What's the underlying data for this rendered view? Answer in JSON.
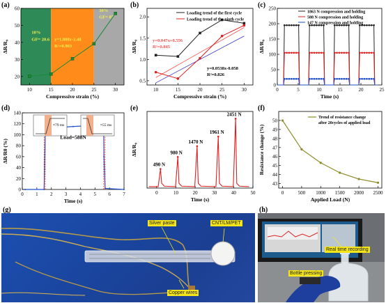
{
  "panels": {
    "a": {
      "label": "(a)",
      "chart_data": {
        "type": "line",
        "x": [
          10,
          15,
          20,
          25,
          30
        ],
        "series": [
          {
            "values": [
              20.1,
              21.4,
              30.4,
              39.2,
              57.0
            ]
          }
        ],
        "xlabel": "Compressive strain (%)",
        "ylabel": "ΔR/R₀",
        "xlim": [
          8,
          32
        ],
        "ylim": [
          15,
          60
        ],
        "xticks": [
          10,
          15,
          20,
          25,
          30
        ],
        "yticks": [
          20,
          30,
          40,
          50,
          60
        ],
        "regions": [
          {
            "x_from": 8,
            "x_to": 15,
            "color": "#2e8b57",
            "label_a": "10%",
            "label_b": "GF= 20.6"
          },
          {
            "x_from": 15,
            "x_to": 25,
            "color": "#ff8c1a",
            "label_a": "y=1.808x-2.48",
            "label_b": "R²=0.903"
          },
          {
            "x_from": 25,
            "x_to": 32,
            "color": "#a8a8a8",
            "label_a": "30%",
            "label_b": "GF= 87"
          }
        ]
      }
    },
    "b": {
      "label": "(b)",
      "chart_data": {
        "type": "line",
        "x": [
          10,
          15,
          20,
          25,
          30
        ],
        "series": [
          {
            "name": "Loading trend of the first cycle",
            "color": "#222222",
            "values": [
              1.1,
              1.07,
              1.62,
              1.93,
              1.85
            ]
          },
          {
            "name": "Loading trend of the ninth cycle",
            "color": "#e02020",
            "values": [
              0.7,
              0.55,
              1.03,
              1.55,
              1.8
            ]
          }
        ],
        "fits": [
          {
            "color": "#ff5050",
            "text_a": "y=0.047x+0.556",
            "text_b": "R²=0.845"
          },
          {
            "color": "#3a3ad0",
            "text_a": "y=0.0538x-0.058",
            "text_b": "R²=0.826"
          }
        ],
        "xlabel": "Compressive strain (%)",
        "ylabel": "ΔR/R₀",
        "xlim": [
          8,
          32
        ],
        "ylim": [
          0.4,
          2.2
        ],
        "xticks": [
          10,
          15,
          20,
          25,
          30
        ],
        "yticks": [
          0.5,
          1.0,
          1.5,
          2.0
        ],
        "ytick_labels": [
          "0.5",
          "1.0",
          "1.5",
          "2.0"
        ],
        "legend_position": "top"
      }
    },
    "c": {
      "label": "(c)",
      "chart_data": {
        "type": "line",
        "series": [
          {
            "name": "1863 N compression and holding",
            "color": "#222222",
            "peak": 195
          },
          {
            "name": "588 N compression and holding",
            "color": "#e02020",
            "peak": 105
          },
          {
            "name": "147 N compression and holding",
            "color": "#1f4fcf",
            "peak": 20
          }
        ],
        "cycles": [
          1.5,
          7.5,
          13.5,
          19.5
        ],
        "hold_duration": 3.6,
        "xlabel": "Time (s)",
        "ylabel": "ΔR/R₀",
        "xlim": [
          0,
          25
        ],
        "ylim": [
          0,
          250
        ],
        "xticks": [
          0,
          5,
          10,
          15,
          20,
          25
        ],
        "yticks": [
          0,
          50,
          100,
          150,
          200,
          250
        ],
        "legend_position": "top"
      }
    },
    "d": {
      "label": "(d)",
      "chart_data": {
        "type": "line",
        "series": [
          {
            "color": "#1f4fcf",
            "points": [
              [
                0.2,
                0
              ],
              [
                1.5,
                0
              ],
              [
                1.58,
                100
              ],
              [
                1.7,
                112
              ],
              [
                3.5,
                115
              ],
              [
                5.6,
                118
              ],
              [
                5.62,
                60
              ],
              [
                5.7,
                2
              ],
              [
                7,
                0
              ]
            ]
          }
        ],
        "xlabel": "Time (s)",
        "ylabel": "ΔR/R0 (%)",
        "xlim": [
          0,
          7
        ],
        "ylim": [
          0,
          140
        ],
        "xticks": [
          0,
          1,
          2,
          3,
          4,
          5,
          6,
          7
        ],
        "yticks": [
          0,
          20,
          40,
          60,
          80,
          100,
          120,
          140
        ],
        "annotation": "Load=588N",
        "inset_left": "≈79 ms",
        "inset_right": "≈55 ms"
      }
    },
    "e": {
      "label": "(e)",
      "chart_data": {
        "type": "line",
        "peaks": [
          {
            "t": 2,
            "value": 80,
            "label": "490 N"
          },
          {
            "t": 11,
            "value": 130,
            "label": "980 N"
          },
          {
            "t": 21,
            "value": 175,
            "label": "1470 N"
          },
          {
            "t": 32,
            "value": 215,
            "label": "1961 N"
          },
          {
            "t": 41,
            "value": 290,
            "label": "2451 N"
          }
        ],
        "xlabel": "Time (s)",
        "ylabel": "ΔR/R₀",
        "xlim": [
          -5,
          50
        ],
        "ylim": [
          0,
          320
        ],
        "xticks": [
          0,
          10,
          20,
          30,
          40,
          50
        ],
        "color": "#e02020"
      }
    },
    "f": {
      "label": "(f)",
      "chart_data": {
        "type": "line",
        "x": [
          0,
          500,
          1000,
          1500,
          2000,
          2500
        ],
        "series": [
          {
            "name": "Trend of resistance change after 20cycles of applied load",
            "color": "#8b8b2a",
            "values": [
              50.0,
              46.8,
              45.3,
              44.2,
              43.5,
              43.1
            ]
          }
        ],
        "xlabel": "Applied Load (N)",
        "ylabel": "Resistance change (%)",
        "xlim": [
          -100,
          2600
        ],
        "ylim": [
          42.5,
          51
        ],
        "xticks": [
          0,
          500,
          1000,
          1500,
          2000,
          2500
        ],
        "yticks": [
          43,
          44,
          45,
          46,
          47,
          48,
          49,
          50
        ],
        "legend_position": "top"
      }
    },
    "g": {
      "label": "(g)",
      "tag_silver": "Silver paste",
      "tag_material": "CNT/LM/PET",
      "tag_wires": "Copper wires"
    },
    "h": {
      "label": "(h)",
      "tag_realtime": "Real time recording",
      "tag_bottle": "Bottle pressing"
    }
  }
}
